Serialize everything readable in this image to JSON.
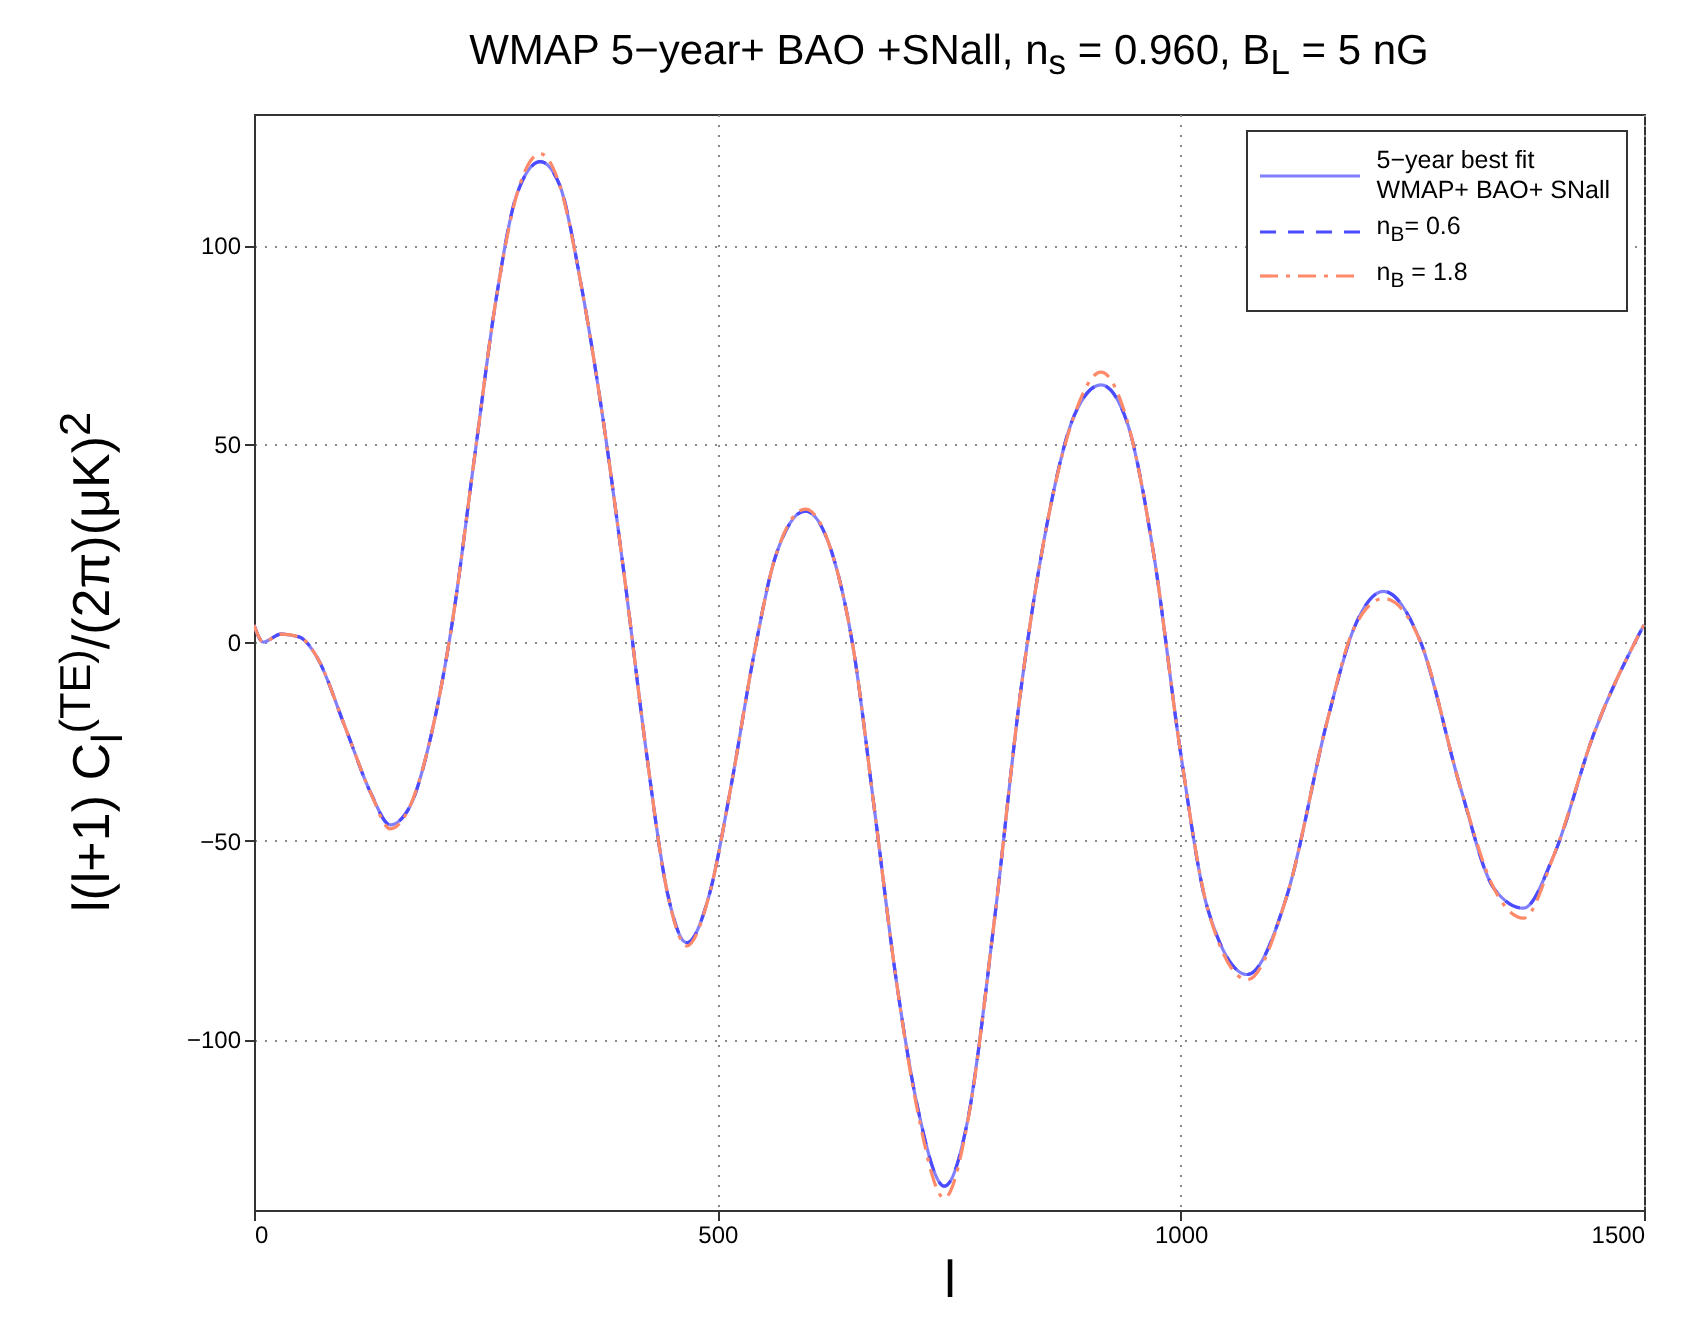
{
  "chart_data": {
    "type": "line",
    "title": "WMAP 5−year+ BAO +SNall, n$_{s}$ = 0.960, B$_{L}$ = 5 nG",
    "xlabel": "l",
    "ylabel": "l(l+1) C$_{l}$$^{(TE)}$/(2π)(μK)$^{2}$",
    "x": [
      0,
      10,
      29,
      49,
      68,
      99,
      126,
      147,
      168,
      191,
      214,
      238,
      261,
      284,
      309,
      330,
      353,
      377,
      400,
      423,
      446,
      467,
      492,
      515,
      539,
      562,
      595,
      623,
      647,
      670,
      693,
      716,
      745,
      770,
      799,
      827,
      856,
      885,
      914,
      942,
      971,
      1000,
      1029,
      1072,
      1115,
      1158,
      1187,
      1219,
      1259,
      1302,
      1338,
      1370,
      1403,
      1446,
      1500
    ],
    "series": [
      {
        "name": "5−year best fit\nWMAP+ BAO+ SNall",
        "color": "#8080ff",
        "line_style": "solid",
        "values": [
          4.3,
          0,
          2,
          1.3,
          -3.8,
          -21.8,
          -38,
          -46,
          -41.5,
          -23.6,
          5,
          46.6,
          86,
          113,
          121,
          115,
          90,
          55.6,
          16,
          -27,
          -63,
          -75.7,
          -63,
          -36,
          -3.8,
          21,
          33,
          23,
          -2,
          -43,
          -85,
          -117,
          -137,
          -120.6,
          -70,
          -13,
          30,
          57,
          64.8,
          55.5,
          22,
          -28,
          -67,
          -83.7,
          -63.6,
          -20,
          3.5,
          12.8,
          0,
          -36.7,
          -62,
          -67,
          -53.5,
          -23,
          4.4
        ]
      },
      {
        "name": "n$_{B}$= 0.6",
        "color": "#4b4bff",
        "line_style": "dashed",
        "values": [
          4.3,
          0,
          2,
          1.3,
          -3.8,
          -21.8,
          -38,
          -46,
          -41.5,
          -23.6,
          5,
          46.6,
          86,
          113,
          121,
          115,
          90,
          55.6,
          16,
          -27,
          -63,
          -75.7,
          -63,
          -36,
          -3.8,
          21,
          33,
          23,
          -2,
          -43,
          -85,
          -117,
          -137,
          -120.6,
          -70,
          -13,
          30,
          57,
          64.8,
          55.5,
          22,
          -28,
          -67,
          -83.7,
          -63.6,
          -20,
          3.5,
          12.8,
          0,
          -36.7,
          -62,
          -67,
          -53.5,
          -23,
          4.4
        ]
      },
      {
        "name": "n$_{B}$ = 1.8",
        "color": "#ff8a6a",
        "line_style": "dashdot",
        "values": [
          4.3,
          0,
          2,
          1.3,
          -3.8,
          -21.8,
          -38,
          -47,
          -41.5,
          -23.6,
          5,
          46.6,
          86,
          113,
          123,
          115,
          90,
          55.6,
          16,
          -27,
          -63,
          -76.5,
          -63,
          -36,
          -3.8,
          21,
          33.5,
          23,
          -2,
          -43,
          -85,
          -118,
          -140,
          -121,
          -70,
          -13,
          30,
          57,
          68,
          56,
          22,
          -28,
          -67,
          -85,
          -63.6,
          -20,
          3.5,
          11,
          0,
          -36.7,
          -62,
          -69.5,
          -53.5,
          -23,
          4.4
        ]
      }
    ],
    "xlim": [
      0,
      1500
    ],
    "xticks": [
      0,
      500,
      1000,
      1500
    ],
    "ylim": [
      -143,
      133
    ],
    "yticks": [
      -100,
      -50,
      0,
      50,
      100
    ],
    "grid": true,
    "legend": "top right"
  }
}
